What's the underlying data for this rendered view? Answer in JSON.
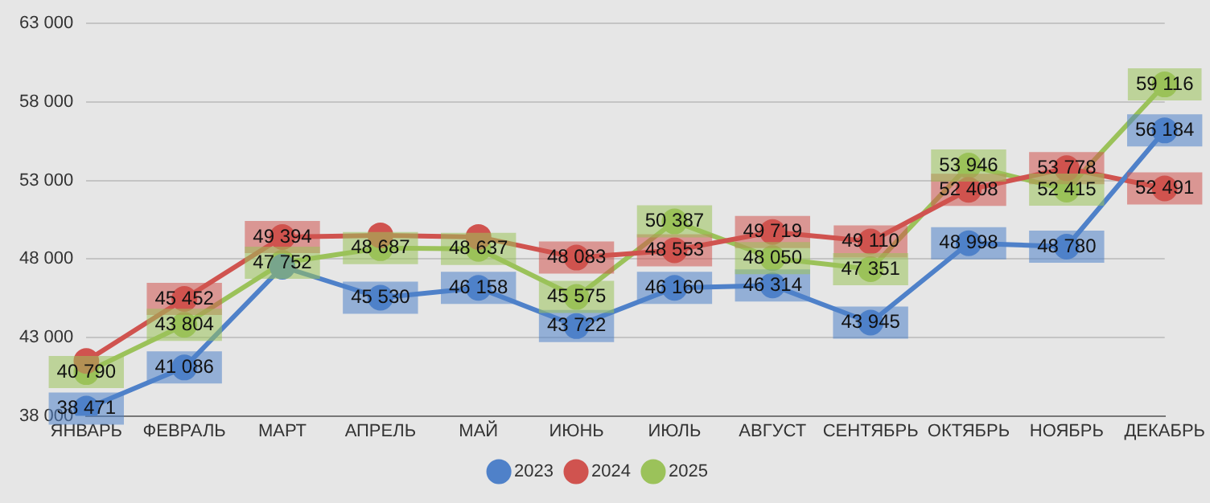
{
  "chart_data": {
    "type": "line",
    "categories": [
      "ЯНВАРЬ",
      "ФЕВРАЛЬ",
      "МАРТ",
      "АПРЕЛЬ",
      "МАЙ",
      "ИЮНЬ",
      "ИЮЛЬ",
      "АВГУСТ",
      "СЕНТЯБРЬ",
      "ОКТЯБРЬ",
      "НОЯБРЬ",
      "ДЕКАБРЬ"
    ],
    "series": [
      {
        "name": "2023",
        "color": "#4f81c9",
        "values": [
          38471,
          41086,
          47500,
          45530,
          46158,
          43722,
          46160,
          46314,
          43945,
          48998,
          48780,
          56184
        ],
        "value_labels": [
          "38 471",
          "41 086",
          null,
          "45 530",
          "46 158",
          "43 722",
          "46 160",
          "46 314",
          "43 945",
          "48 998",
          "48 780",
          "56 184"
        ]
      },
      {
        "name": "2024",
        "color": "#d0534f",
        "values": [
          41500,
          45452,
          49394,
          49500,
          49400,
          48083,
          48553,
          49719,
          49110,
          52408,
          53778,
          52491
        ],
        "value_labels": [
          null,
          "45 452",
          "49 394",
          null,
          null,
          "48 083",
          "48 553",
          "49 719",
          "49 110",
          "52 408",
          "53 778",
          "52 491"
        ]
      },
      {
        "name": "2025",
        "color": "#9bc25a",
        "values": [
          40790,
          43804,
          47752,
          48687,
          48637,
          45575,
          50387,
          48050,
          47351,
          53946,
          52415,
          59116
        ],
        "value_labels": [
          "40 790",
          "43 804",
          "47 752",
          "48 687",
          "48 637",
          "45 575",
          "50 387",
          "48 050",
          "47 351",
          "53 946",
          "52 415",
          "59 116"
        ]
      }
    ],
    "ylim": [
      38000,
      63000
    ],
    "yticks": [
      {
        "value": 38000,
        "label": "38 000"
      },
      {
        "value": 43000,
        "label": "43 000"
      },
      {
        "value": 48000,
        "label": "48 000"
      },
      {
        "value": 53000,
        "label": "53 000"
      },
      {
        "value": 58000,
        "label": "58 000"
      },
      {
        "value": 63000,
        "label": "63 000"
      }
    ],
    "grid": "y",
    "legend": "bottom",
    "marker": "circle",
    "line_style": "solid"
  }
}
